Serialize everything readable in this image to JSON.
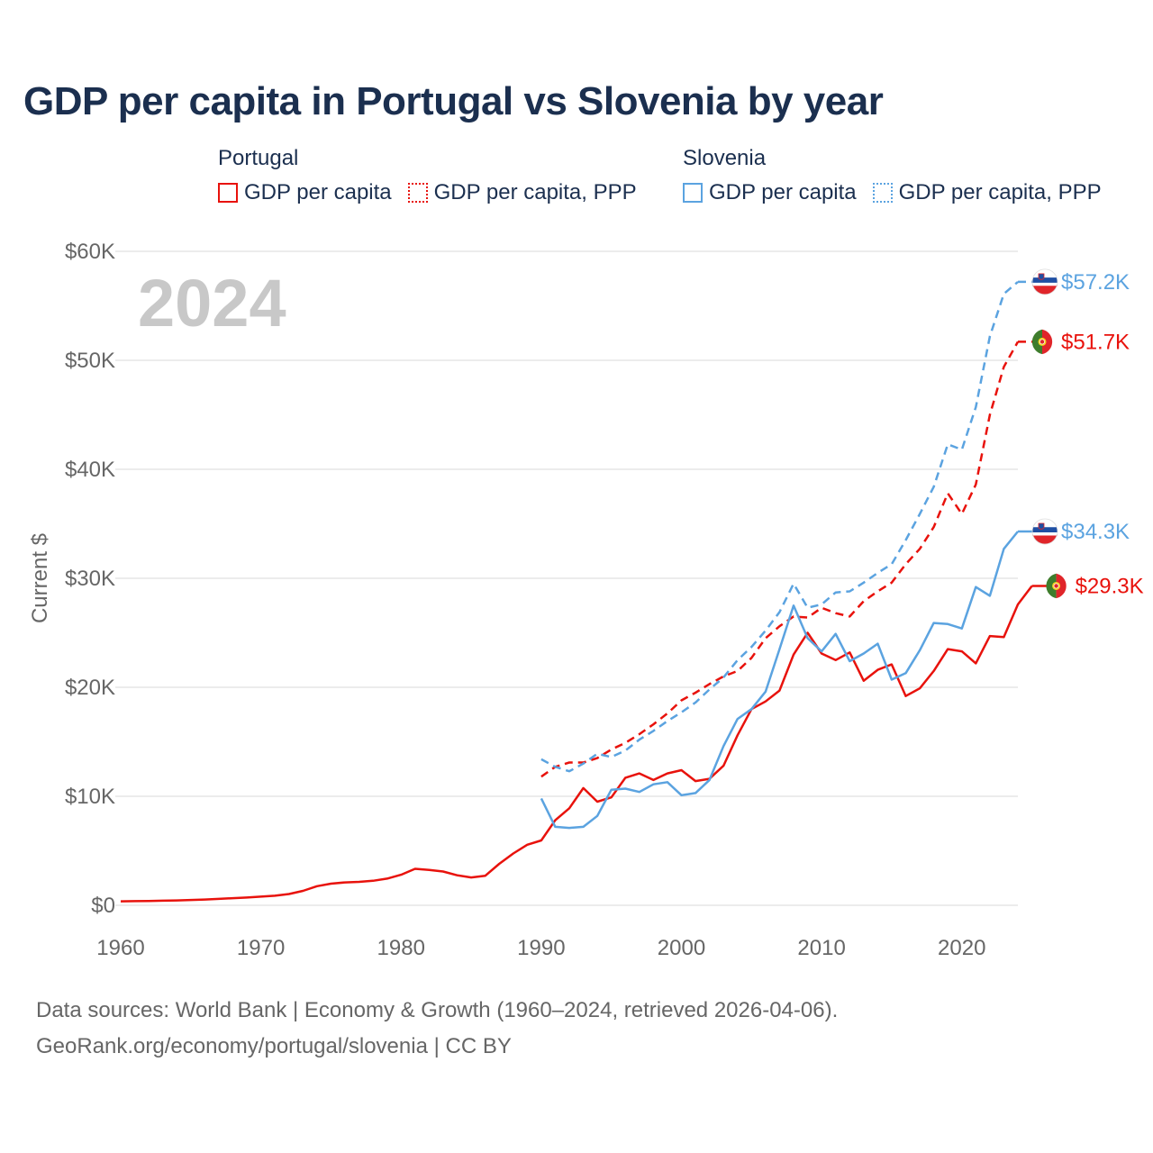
{
  "title": "GDP per capita in Portugal vs Slovenia by year",
  "year_watermark": "2024",
  "legend": [
    {
      "group": "Portugal",
      "color": "#e8120c",
      "items": [
        {
          "label": "GDP per capita",
          "style": "solid"
        },
        {
          "label": "GDP per capita, PPP",
          "style": "dotted"
        }
      ]
    },
    {
      "group": "Slovenia",
      "color": "#5ba3e0",
      "items": [
        {
          "label": "GDP per capita",
          "style": "solid"
        },
        {
          "label": "GDP per capita, PPP",
          "style": "dotted"
        }
      ]
    }
  ],
  "source_line1": "Data sources: World Bank | Economy & Growth (1960–2024, retrieved 2026-04-06).",
  "source_line2": "GeoRank.org/economy/portugal/slovenia | CC BY",
  "chart_data": {
    "type": "line",
    "title": "GDP per capita in Portugal vs Slovenia by year",
    "xlabel": "",
    "ylabel": "Current $",
    "xlim": [
      1960,
      2024
    ],
    "ylim": [
      0,
      60000
    ],
    "grid": true,
    "x_ticks": [
      1960,
      1970,
      1980,
      1990,
      2000,
      2010,
      2020
    ],
    "x_tick_labels": [
      "1960",
      "1970",
      "1980",
      "1990",
      "2000",
      "2010",
      "2020"
    ],
    "y_ticks": [
      0,
      10000,
      20000,
      30000,
      40000,
      50000,
      60000
    ],
    "y_tick_labels": [
      "$0",
      "$10K",
      "$20K",
      "$30K",
      "$40K",
      "$50K",
      "$60K"
    ],
    "series": [
      {
        "name": "Portugal GDP per capita",
        "country": "Portugal",
        "color": "#e8120c",
        "dash": "solid",
        "end_label": "$29.3K",
        "start_year": 1960,
        "values": [
          360,
          380,
          400,
          420,
          450,
          490,
          530,
          590,
          650,
          710,
          790,
          880,
          1030,
          1320,
          1750,
          1980,
          2100,
          2150,
          2250,
          2450,
          2800,
          3350,
          3250,
          3100,
          2750,
          2550,
          2700,
          3800,
          4750,
          5550,
          5950,
          7800,
          8900,
          10750,
          9500,
          9900,
          11700,
          12100,
          11500,
          12100,
          12400,
          11400,
          11600,
          12800,
          15600,
          18000,
          18700,
          19700,
          23000,
          25000,
          23100,
          22500,
          23200,
          20600,
          21600,
          22100,
          19200,
          19900,
          21500,
          23500,
          23300,
          22200,
          24700,
          24600,
          27600,
          29300
        ]
      },
      {
        "name": "Portugal GDP per capita, PPP",
        "country": "Portugal",
        "color": "#e8120c",
        "dash": "dashed",
        "end_label": "$51.7K",
        "start_year": 1990,
        "values": [
          11800,
          12700,
          13100,
          13100,
          13500,
          14300,
          14900,
          15700,
          16600,
          17600,
          18800,
          19500,
          20300,
          21000,
          21500,
          22700,
          24500,
          25600,
          26500,
          26400,
          27300,
          26800,
          26500,
          27900,
          28800,
          29600,
          31300,
          32700,
          34700,
          37800,
          35900,
          38600,
          45000,
          49400,
          51700
        ]
      },
      {
        "name": "Slovenia GDP per capita",
        "country": "Slovenia",
        "color": "#5ba3e0",
        "dash": "solid",
        "end_label": "$34.3K",
        "start_year": 1990,
        "values": [
          9800,
          7200,
          7100,
          7200,
          8200,
          10600,
          10700,
          10400,
          11100,
          11300,
          10100,
          10300,
          11500,
          14600,
          17100,
          18000,
          19600,
          23500,
          27500,
          24500,
          23300,
          24900,
          22400,
          23100,
          24000,
          20700,
          21300,
          23400,
          25900,
          25800,
          25400,
          29200,
          28400,
          32700,
          34300
        ]
      },
      {
        "name": "Slovenia GDP per capita, PPP",
        "country": "Slovenia",
        "color": "#5ba3e0",
        "dash": "dashed",
        "end_label": "$57.2K",
        "start_year": 1990,
        "values": [
          13400,
          12700,
          12300,
          13000,
          13900,
          13600,
          14200,
          15200,
          16000,
          16900,
          17700,
          18600,
          19800,
          20900,
          22500,
          23700,
          25200,
          26900,
          29500,
          27300,
          27600,
          28700,
          28800,
          29600,
          30500,
          31300,
          33500,
          35900,
          38400,
          42300,
          41800,
          45700,
          52200,
          56100,
          57200
        ]
      }
    ]
  }
}
